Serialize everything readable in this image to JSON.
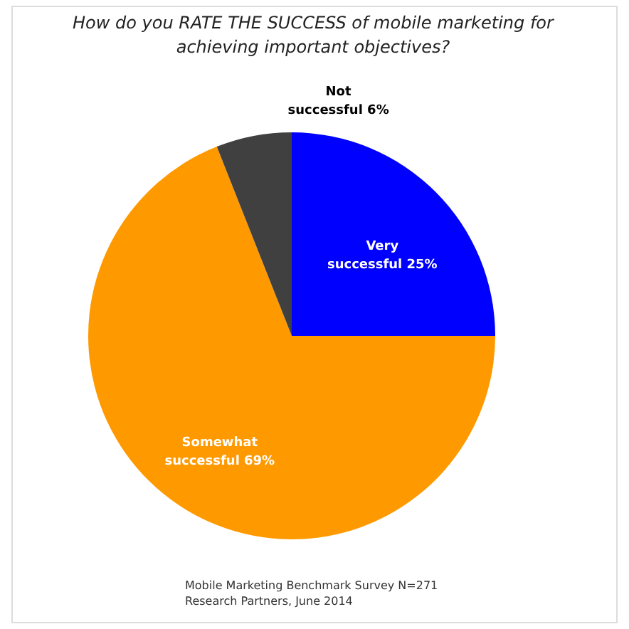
{
  "chart_data": {
    "type": "pie",
    "title": "How do you RATE THE SUCCESS of mobile marketing for achieving important objectives?",
    "categories": [
      "Very successful",
      "Somewhat successful",
      "Not successful"
    ],
    "values": [
      25,
      69,
      6
    ],
    "value_labels": [
      "25%",
      "69%",
      "6%"
    ],
    "colors": [
      "#0000ff",
      "#ff9900",
      "#404040"
    ],
    "legend": false,
    "annotations": [
      "Mobile Marketing Benchmark Survey N=271",
      "Research Partners, June 2014"
    ]
  }
}
